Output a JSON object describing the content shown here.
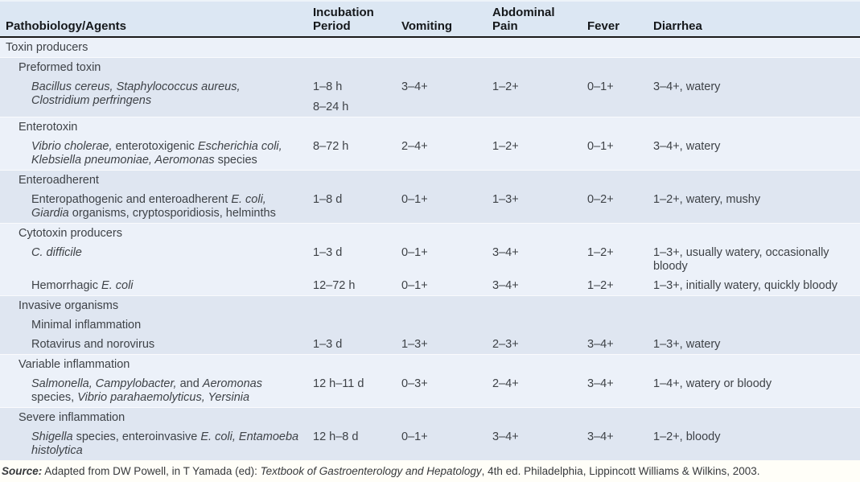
{
  "table": {
    "header": {
      "columns": [
        "Pathobiology/Agents",
        "Incubation\nPeriod",
        "Vomiting",
        "Abdominal\nPain",
        "Fever",
        "Diarrhea"
      ]
    },
    "rows": [
      {
        "band": "light",
        "indent": 0,
        "name_lines": [
          [
            {
              "t": "Toxin producers"
            }
          ]
        ],
        "incubation": [],
        "vomiting": "",
        "abdominal_pain": "",
        "fever": "",
        "diarrhea": []
      },
      {
        "band": "dark",
        "indent": 1,
        "name_lines": [
          [
            {
              "t": "Preformed toxin"
            }
          ]
        ],
        "incubation": [],
        "vomiting": "",
        "abdominal_pain": "",
        "fever": "",
        "diarrhea": []
      },
      {
        "band": "dark",
        "indent": 2,
        "name_lines": [
          [
            {
              "t": "Bacillus cereus, Staphylococcus aureus,",
              "i": true
            }
          ],
          [
            {
              "t": "Clostridium perfringens",
              "i": true
            }
          ]
        ],
        "incubation": [
          "1–8 h",
          "8–24 h"
        ],
        "vomiting": "3–4+",
        "abdominal_pain": "1–2+",
        "fever": "0–1+",
        "diarrhea": [
          "3–4+, watery"
        ]
      },
      {
        "band": "light",
        "indent": 1,
        "name_lines": [
          [
            {
              "t": "Enterotoxin"
            }
          ]
        ],
        "incubation": [],
        "vomiting": "",
        "abdominal_pain": "",
        "fever": "",
        "diarrhea": []
      },
      {
        "band": "light",
        "indent": 2,
        "name_lines": [
          [
            {
              "t": "Vibrio cholerae,",
              "i": true
            },
            {
              "t": " enterotoxigenic "
            },
            {
              "t": "Escherichia coli,",
              "i": true
            }
          ],
          [
            {
              "t": "Klebsiella pneumoniae, Aeromonas",
              "i": true
            },
            {
              "t": " species"
            }
          ]
        ],
        "incubation": [
          "8–72 h"
        ],
        "vomiting": "2–4+",
        "abdominal_pain": "1–2+",
        "fever": "0–1+",
        "diarrhea": [
          "3–4+, watery"
        ]
      },
      {
        "band": "dark",
        "indent": 1,
        "name_lines": [
          [
            {
              "t": "Enteroadherent"
            }
          ]
        ],
        "incubation": [],
        "vomiting": "",
        "abdominal_pain": "",
        "fever": "",
        "diarrhea": []
      },
      {
        "band": "dark",
        "indent": 2,
        "name_lines": [
          [
            {
              "t": "Enteropathogenic and enteroadherent "
            },
            {
              "t": "E. coli,",
              "i": true
            }
          ],
          [
            {
              "t": "Giardia",
              "i": true
            },
            {
              "t": " organisms, cryptosporidiosis, helminths"
            }
          ]
        ],
        "incubation": [
          "1–8 d"
        ],
        "vomiting": "0–1+",
        "abdominal_pain": "1–3+",
        "fever": "0–2+",
        "diarrhea": [
          "1–2+, watery, mushy"
        ]
      },
      {
        "band": "light",
        "indent": 1,
        "name_lines": [
          [
            {
              "t": "Cytotoxin producers"
            }
          ]
        ],
        "incubation": [],
        "vomiting": "",
        "abdominal_pain": "",
        "fever": "",
        "diarrhea": []
      },
      {
        "band": "light",
        "indent": 2,
        "name_lines": [
          [
            {
              "t": "C. difficile",
              "i": true
            }
          ]
        ],
        "incubation": [
          "1–3 d"
        ],
        "vomiting": "0–1+",
        "abdominal_pain": "3–4+",
        "fever": "1–2+",
        "diarrhea": [
          "1–3+, usually watery, occasionally",
          "bloody"
        ]
      },
      {
        "band": "light",
        "indent": 2,
        "name_lines": [
          [
            {
              "t": "Hemorrhagic "
            },
            {
              "t": "E. coli",
              "i": true
            }
          ]
        ],
        "incubation": [
          "12–72 h"
        ],
        "vomiting": "0–1+",
        "abdominal_pain": "3–4+",
        "fever": "1–2+",
        "diarrhea": [
          "1–3+, initially watery, quickly bloody"
        ]
      },
      {
        "band": "dark",
        "indent": 1,
        "name_lines": [
          [
            {
              "t": "Invasive organisms"
            }
          ]
        ],
        "incubation": [],
        "vomiting": "",
        "abdominal_pain": "",
        "fever": "",
        "diarrhea": []
      },
      {
        "band": "dark",
        "indent": 2,
        "name_lines": [
          [
            {
              "t": "Minimal inflammation"
            }
          ]
        ],
        "incubation": [],
        "vomiting": "",
        "abdominal_pain": "",
        "fever": "",
        "diarrhea": []
      },
      {
        "band": "dark",
        "indent": 2,
        "name_lines": [
          [
            {
              "t": "Rotavirus and norovirus"
            }
          ]
        ],
        "incubation": [
          "1–3 d"
        ],
        "vomiting": "1–3+",
        "abdominal_pain": "2–3+",
        "fever": "3–4+",
        "diarrhea": [
          "1–3+, watery"
        ]
      },
      {
        "band": "light",
        "indent": 1,
        "name_lines": [
          [
            {
              "t": "Variable inflammation"
            }
          ]
        ],
        "incubation": [],
        "vomiting": "",
        "abdominal_pain": "",
        "fever": "",
        "diarrhea": []
      },
      {
        "band": "light",
        "indent": 2,
        "name_lines": [
          [
            {
              "t": "Salmonella, Campylobacter,",
              "i": true
            },
            {
              "t": " and "
            },
            {
              "t": "Aeromonas",
              "i": true
            }
          ],
          [
            {
              "t": "species, "
            },
            {
              "t": "Vibrio parahaemolyticus, Yersinia",
              "i": true
            }
          ]
        ],
        "incubation": [
          "12 h–11 d"
        ],
        "vomiting": "0–3+",
        "abdominal_pain": "2–4+",
        "fever": "3–4+",
        "diarrhea": [
          "1–4+, watery or bloody"
        ]
      },
      {
        "band": "dark",
        "indent": 1,
        "name_lines": [
          [
            {
              "t": "Severe inflammation"
            }
          ]
        ],
        "incubation": [],
        "vomiting": "",
        "abdominal_pain": "",
        "fever": "",
        "diarrhea": []
      },
      {
        "band": "dark",
        "indent": 2,
        "name_lines": [
          [
            {
              "t": "Shigella",
              "i": true
            },
            {
              "t": " species, enteroinvasive "
            },
            {
              "t": "E. coli, Entamoeba",
              "i": true
            }
          ],
          [
            {
              "t": "histolytica",
              "i": true
            }
          ]
        ],
        "incubation": [
          "12 h–8 d"
        ],
        "vomiting": "0–1+",
        "abdominal_pain": "3–4+",
        "fever": "3–4+",
        "diarrhea": [
          "1–2+, bloody"
        ]
      }
    ]
  },
  "source_note": {
    "segments": [
      {
        "t": "Source:",
        "b": true,
        "i": true
      },
      {
        "t": " Adapted from DW Powell, in T Yamada (ed): "
      },
      {
        "t": "Textbook of Gastroenterology and Hepatology",
        "i": true
      },
      {
        "t": ", 4th ed. Philadelphia, Lippincott Williams & Wilkins, 2003."
      }
    ]
  },
  "colors": {
    "header_bg": "#dce7f3",
    "band_light": "#ecf1f9",
    "band_dark": "#dfe6f1",
    "header_rule": "#1a1a1a",
    "source_bg": "#fffef8",
    "text": "#3e4247"
  }
}
